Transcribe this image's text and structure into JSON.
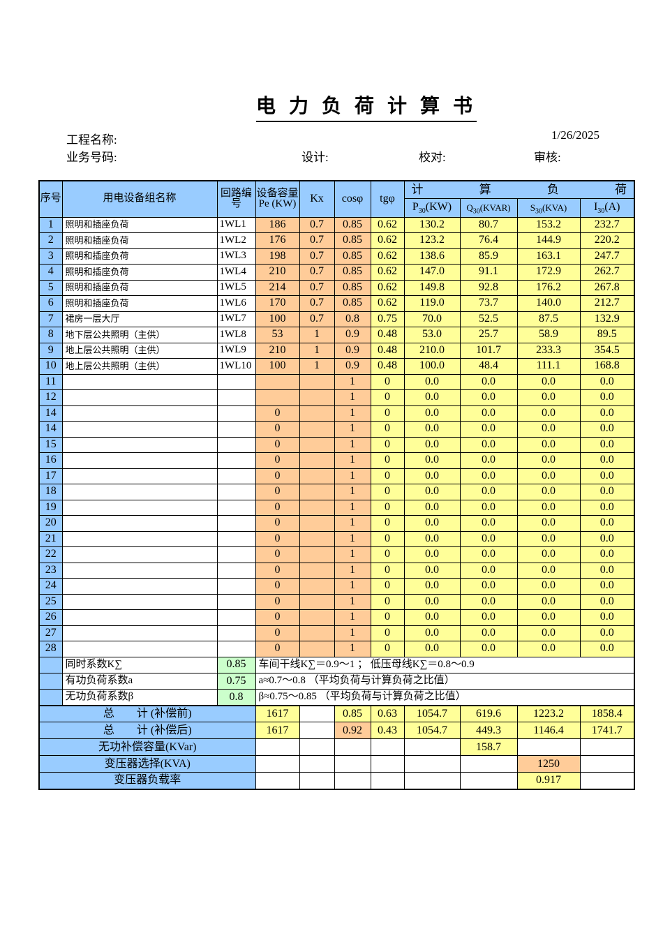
{
  "title": "电 力 负 荷 计 算 书",
  "meta": {
    "project_label": "工程名称:",
    "date": "1/26/2025",
    "business_label": "业务号码:",
    "design_label": "设计:",
    "proof_label": "校对:",
    "review_label": "审核:"
  },
  "colors": {
    "header_blue": "#99CCFF",
    "cell_orange": "#FFCC99",
    "cell_yellow": "#FFFF99",
    "cell_green": "#CCFFCC"
  },
  "table": {
    "headers": {
      "seq": "序号",
      "name": "用电设备组名称",
      "circuit": "回路编号",
      "pe": "设备容量 Pe (KW)",
      "kx": "Kx",
      "cos": "cosφ",
      "tg": "tgφ",
      "calc_load": "计 算 负 荷",
      "p30": {
        "base": "P",
        "sub": "30",
        "unit": "(KW)"
      },
      "q30": {
        "base": "Q",
        "sub": "30",
        "unit": "(KVAR)"
      },
      "s30": {
        "base": "S",
        "sub": "30",
        "unit": "(KVA)"
      },
      "i30": {
        "base": "I",
        "sub": "30",
        "unit": "(A)"
      }
    },
    "rows": [
      {
        "no": "1",
        "name": "照明和插座负荷",
        "circuit": "1WL1",
        "pe": "186",
        "kx": "0.7",
        "cos": "0.85",
        "tg": "0.62",
        "p": "130.2",
        "q": "80.7",
        "s": "153.2",
        "i": "232.7"
      },
      {
        "no": "2",
        "name": "照明和插座负荷",
        "circuit": "1WL2",
        "pe": "176",
        "kx": "0.7",
        "cos": "0.85",
        "tg": "0.62",
        "p": "123.2",
        "q": "76.4",
        "s": "144.9",
        "i": "220.2"
      },
      {
        "no": "3",
        "name": "照明和插座负荷",
        "circuit": "1WL3",
        "pe": "198",
        "kx": "0.7",
        "cos": "0.85",
        "tg": "0.62",
        "p": "138.6",
        "q": "85.9",
        "s": "163.1",
        "i": "247.7"
      },
      {
        "no": "4",
        "name": "照明和插座负荷",
        "circuit": "1WL4",
        "pe": "210",
        "kx": "0.7",
        "cos": "0.85",
        "tg": "0.62",
        "p": "147.0",
        "q": "91.1",
        "s": "172.9",
        "i": "262.7"
      },
      {
        "no": "5",
        "name": "照明和插座负荷",
        "circuit": "1WL5",
        "pe": "214",
        "kx": "0.7",
        "cos": "0.85",
        "tg": "0.62",
        "p": "149.8",
        "q": "92.8",
        "s": "176.2",
        "i": "267.8"
      },
      {
        "no": "6",
        "name": "照明和插座负荷",
        "circuit": "1WL6",
        "pe": "170",
        "kx": "0.7",
        "cos": "0.85",
        "tg": "0.62",
        "p": "119.0",
        "q": "73.7",
        "s": "140.0",
        "i": "212.7"
      },
      {
        "no": "7",
        "name": "裙房一层大厅",
        "circuit": "1WL7",
        "pe": "100",
        "kx": "0.7",
        "cos": "0.8",
        "tg": "0.75",
        "p": "70.0",
        "q": "52.5",
        "s": "87.5",
        "i": "132.9"
      },
      {
        "no": "8",
        "name": "地下层公共照明（主供）",
        "circuit": "1WL8",
        "pe": "53",
        "kx": "1",
        "cos": "0.9",
        "tg": "0.48",
        "p": "53.0",
        "q": "25.7",
        "s": "58.9",
        "i": "89.5"
      },
      {
        "no": "9",
        "name": "地上层公共照明（主供）",
        "circuit": "1WL9",
        "pe": "210",
        "kx": "1",
        "cos": "0.9",
        "tg": "0.48",
        "p": "210.0",
        "q": "101.7",
        "s": "233.3",
        "i": "354.5"
      },
      {
        "no": "10",
        "name": "地上层公共照明（主供）",
        "circuit": "1WL10",
        "pe": "100",
        "kx": "1",
        "cos": "0.9",
        "tg": "0.48",
        "p": "100.0",
        "q": "48.4",
        "s": "111.1",
        "i": "168.8"
      },
      {
        "no": "11",
        "name": "",
        "circuit": "",
        "pe": "",
        "kx": "",
        "cos": "1",
        "tg": "0",
        "p": "0.0",
        "q": "0.0",
        "s": "0.0",
        "i": "0.0"
      },
      {
        "no": "12",
        "name": "",
        "circuit": "",
        "pe": "",
        "kx": "",
        "cos": "1",
        "tg": "0",
        "p": "0.0",
        "q": "0.0",
        "s": "0.0",
        "i": "0.0"
      },
      {
        "no": "14",
        "name": "",
        "circuit": "",
        "pe": "0",
        "kx": "",
        "cos": "1",
        "tg": "0",
        "p": "0.0",
        "q": "0.0",
        "s": "0.0",
        "i": "0.0"
      },
      {
        "no": "14",
        "name": "",
        "circuit": "",
        "pe": "0",
        "kx": "",
        "cos": "1",
        "tg": "0",
        "p": "0.0",
        "q": "0.0",
        "s": "0.0",
        "i": "0.0"
      },
      {
        "no": "15",
        "name": "",
        "circuit": "",
        "pe": "0",
        "kx": "",
        "cos": "1",
        "tg": "0",
        "p": "0.0",
        "q": "0.0",
        "s": "0.0",
        "i": "0.0"
      },
      {
        "no": "16",
        "name": "",
        "circuit": "",
        "pe": "0",
        "kx": "",
        "cos": "1",
        "tg": "0",
        "p": "0.0",
        "q": "0.0",
        "s": "0.0",
        "i": "0.0"
      },
      {
        "no": "17",
        "name": "",
        "circuit": "",
        "pe": "0",
        "kx": "",
        "cos": "1",
        "tg": "0",
        "p": "0.0",
        "q": "0.0",
        "s": "0.0",
        "i": "0.0"
      },
      {
        "no": "18",
        "name": "",
        "circuit": "",
        "pe": "0",
        "kx": "",
        "cos": "1",
        "tg": "0",
        "p": "0.0",
        "q": "0.0",
        "s": "0.0",
        "i": "0.0"
      },
      {
        "no": "19",
        "name": "",
        "circuit": "",
        "pe": "0",
        "kx": "",
        "cos": "1",
        "tg": "0",
        "p": "0.0",
        "q": "0.0",
        "s": "0.0",
        "i": "0.0"
      },
      {
        "no": "20",
        "name": "",
        "circuit": "",
        "pe": "0",
        "kx": "",
        "cos": "1",
        "tg": "0",
        "p": "0.0",
        "q": "0.0",
        "s": "0.0",
        "i": "0.0"
      },
      {
        "no": "21",
        "name": "",
        "circuit": "",
        "pe": "0",
        "kx": "",
        "cos": "1",
        "tg": "0",
        "p": "0.0",
        "q": "0.0",
        "s": "0.0",
        "i": "0.0"
      },
      {
        "no": "22",
        "name": "",
        "circuit": "",
        "pe": "0",
        "kx": "",
        "cos": "1",
        "tg": "0",
        "p": "0.0",
        "q": "0.0",
        "s": "0.0",
        "i": "0.0"
      },
      {
        "no": "23",
        "name": "",
        "circuit": "",
        "pe": "0",
        "kx": "",
        "cos": "1",
        "tg": "0",
        "p": "0.0",
        "q": "0.0",
        "s": "0.0",
        "i": "0.0"
      },
      {
        "no": "24",
        "name": "",
        "circuit": "",
        "pe": "0",
        "kx": "",
        "cos": "1",
        "tg": "0",
        "p": "0.0",
        "q": "0.0",
        "s": "0.0",
        "i": "0.0"
      },
      {
        "no": "25",
        "name": "",
        "circuit": "",
        "pe": "0",
        "kx": "",
        "cos": "1",
        "tg": "0",
        "p": "0.0",
        "q": "0.0",
        "s": "0.0",
        "i": "0.0"
      },
      {
        "no": "26",
        "name": "",
        "circuit": "",
        "pe": "0",
        "kx": "",
        "cos": "1",
        "tg": "0",
        "p": "0.0",
        "q": "0.0",
        "s": "0.0",
        "i": "0.0"
      },
      {
        "no": "27",
        "name": "",
        "circuit": "",
        "pe": "0",
        "kx": "",
        "cos": "1",
        "tg": "0",
        "p": "0.0",
        "q": "0.0",
        "s": "0.0",
        "i": "0.0"
      },
      {
        "no": "28",
        "name": "",
        "circuit": "",
        "pe": "0",
        "kx": "",
        "cos": "1",
        "tg": "0",
        "p": "0.0",
        "q": "0.0",
        "s": "0.0",
        "i": "0.0"
      }
    ],
    "coefficients": [
      {
        "label": "同时系数K∑",
        "value": "0.85",
        "note": "车间干线K∑＝0.9～1 ；  低压母线K∑＝0.8～0.9"
      },
      {
        "label": "有功负荷系数a",
        "value": "0.75",
        "note": "a≈0.7～0.8 （平均负荷与计算负荷之比值）"
      },
      {
        "label": "无功负荷系数β",
        "value": "0.8",
        "note": "β≈0.75～0.85 （平均负荷与计算负荷之比值）"
      }
    ],
    "summary": [
      {
        "label": "总　　计 (补偿前)",
        "cells": [
          {
            "v": "1617",
            "bg": "yellow"
          },
          {
            "v": "",
            "bg": "white"
          },
          {
            "v": "0.85",
            "bg": "yellow"
          },
          {
            "v": "0.63",
            "bg": "yellow"
          },
          {
            "v": "1054.7",
            "bg": "yellow"
          },
          {
            "v": "619.6",
            "bg": "yellow"
          },
          {
            "v": "1223.2",
            "bg": "yellow"
          },
          {
            "v": "1858.4",
            "bg": "yellow"
          }
        ]
      },
      {
        "label": "总　　计 (补偿后)",
        "cells": [
          {
            "v": "1617",
            "bg": "yellow"
          },
          {
            "v": "",
            "bg": "white"
          },
          {
            "v": "0.92",
            "bg": "orange"
          },
          {
            "v": "0.43",
            "bg": "yellow"
          },
          {
            "v": "1054.7",
            "bg": "yellow"
          },
          {
            "v": "449.3",
            "bg": "yellow"
          },
          {
            "v": "1146.4",
            "bg": "yellow"
          },
          {
            "v": "1741.7",
            "bg": "yellow"
          }
        ]
      },
      {
        "label": "无功补偿容量(KVar)",
        "cells": [
          {
            "v": "",
            "bg": "white"
          },
          {
            "v": "",
            "bg": "white"
          },
          {
            "v": "",
            "bg": "white"
          },
          {
            "v": "",
            "bg": "white"
          },
          {
            "v": "",
            "bg": "white"
          },
          {
            "v": "158.7",
            "bg": "yellow"
          },
          {
            "v": "",
            "bg": "white"
          },
          {
            "v": "",
            "bg": "white"
          }
        ]
      },
      {
        "label": "变压器选择(KVA)",
        "cells": [
          {
            "v": "",
            "bg": "white"
          },
          {
            "v": "",
            "bg": "white"
          },
          {
            "v": "",
            "bg": "white"
          },
          {
            "v": "",
            "bg": "white"
          },
          {
            "v": "",
            "bg": "white"
          },
          {
            "v": "",
            "bg": "white"
          },
          {
            "v": "1250",
            "bg": "orange"
          },
          {
            "v": "",
            "bg": "white"
          }
        ]
      },
      {
        "label": "变压器负载率",
        "cells": [
          {
            "v": "",
            "bg": "white"
          },
          {
            "v": "",
            "bg": "white"
          },
          {
            "v": "",
            "bg": "white"
          },
          {
            "v": "",
            "bg": "white"
          },
          {
            "v": "",
            "bg": "white"
          },
          {
            "v": "",
            "bg": "white"
          },
          {
            "v": "0.917",
            "bg": "yellow"
          },
          {
            "v": "",
            "bg": "white"
          }
        ]
      }
    ]
  }
}
